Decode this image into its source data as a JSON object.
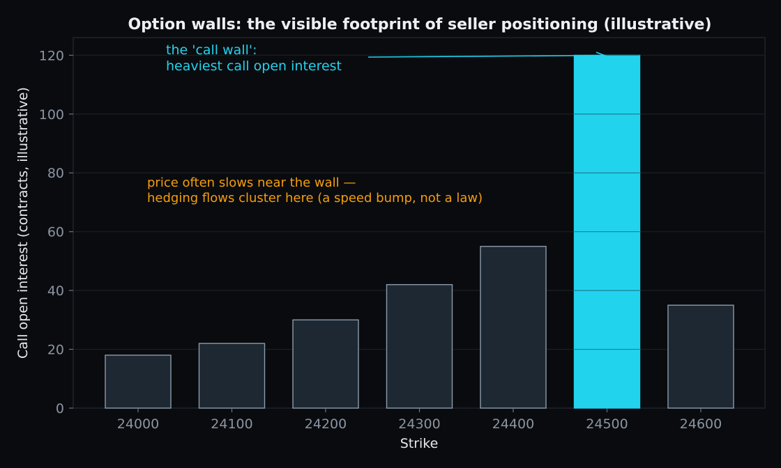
{
  "chart_data": {
    "type": "bar",
    "title": "Option walls: the visible footprint of seller positioning (illustrative)",
    "xlabel": "Strike",
    "ylabel": "Call open interest (contracts, illustrative)",
    "categories": [
      "24000",
      "24100",
      "24200",
      "24300",
      "24400",
      "24500",
      "24600"
    ],
    "values": [
      18,
      22,
      30,
      42,
      55,
      120,
      35
    ],
    "highlight_category": "24500",
    "ylim": [
      0,
      126
    ],
    "yticks": [
      0,
      20,
      40,
      60,
      80,
      100,
      120
    ],
    "grid": "horizontal",
    "colors": {
      "background": "#0a0b0e",
      "bar": "#1e2833",
      "bar_edge": "#8b9bab",
      "highlight": "#22d3ee",
      "grid": "#1a2027",
      "annotation_call": "#22d3ee",
      "annotation_note": "#f59e0b"
    },
    "annotations": {
      "call_wall": [
        "the 'call wall':",
        "heaviest call open interest"
      ],
      "note": [
        "price often slows near the wall —",
        "hedging flows cluster here (a speed bump, not a law)"
      ]
    }
  }
}
